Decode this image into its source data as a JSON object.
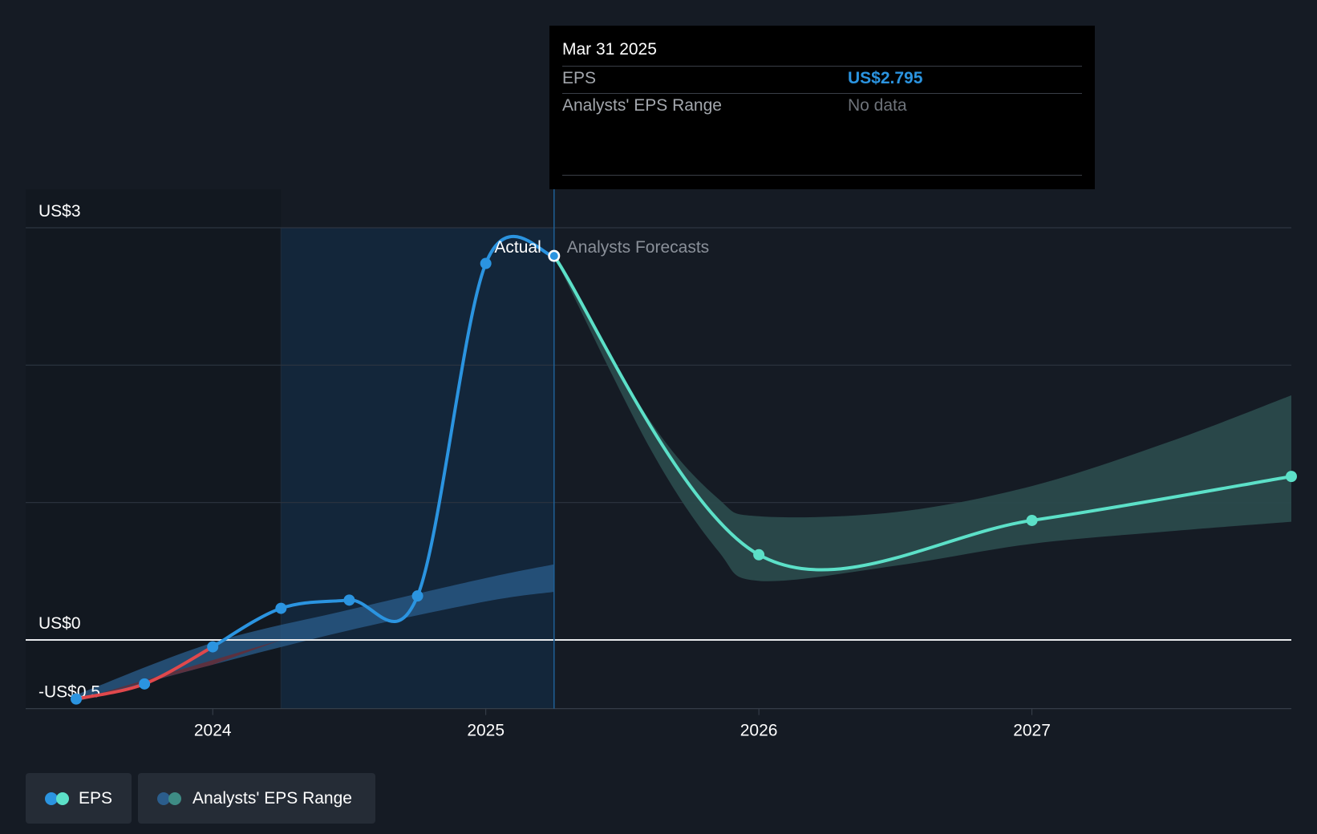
{
  "chart_data": {
    "type": "line",
    "x_unit": "year",
    "xlim": [
      2023.5,
      2027.95
    ],
    "ylim": [
      -0.5,
      3
    ],
    "y_ticks": [
      {
        "value": 3,
        "label": "US$3"
      },
      {
        "value": 0,
        "label": "US$0"
      },
      {
        "value": -0.5,
        "label": "-US$0.5"
      }
    ],
    "grid_values": [
      3,
      2,
      1,
      0,
      -0.5
    ],
    "x_ticks": [
      {
        "value": 2024,
        "label": "2024"
      },
      {
        "value": 2025,
        "label": "2025"
      },
      {
        "value": 2026,
        "label": "2026"
      },
      {
        "value": 2027,
        "label": "2027"
      }
    ],
    "past_region_start": 2024.25,
    "divider_x": 2025.25,
    "region_labels": {
      "actual": "Actual",
      "forecast": "Analysts Forecasts"
    },
    "series": [
      {
        "name": "EPS",
        "kind": "actual",
        "points": [
          {
            "x": 2023.5,
            "y": -0.43
          },
          {
            "x": 2023.75,
            "y": -0.32
          },
          {
            "x": 2024.0,
            "y": -0.05
          },
          {
            "x": 2024.25,
            "y": 0.23
          },
          {
            "x": 2024.5,
            "y": 0.29
          },
          {
            "x": 2024.75,
            "y": 0.32
          },
          {
            "x": 2025.0,
            "y": 2.74
          },
          {
            "x": 2025.25,
            "y": 2.795
          }
        ],
        "negative_color": "#e0484c",
        "positive_color": "#2b94e0"
      },
      {
        "name": "EPS",
        "kind": "forecast",
        "points": [
          {
            "x": 2025.25,
            "y": 2.795
          },
          {
            "x": 2026.0,
            "y": 0.62
          },
          {
            "x": 2027.0,
            "y": 0.87
          },
          {
            "x": 2027.95,
            "y": 1.19
          }
        ],
        "color": "#5ce0c8"
      }
    ],
    "past_band": {
      "x": [
        2023.5,
        2024.0,
        2024.5,
        2025.0,
        2025.25
      ],
      "low": [
        -0.45,
        -0.18,
        0.07,
        0.28,
        0.35
      ],
      "high": [
        -0.4,
        -0.02,
        0.22,
        0.45,
        0.55
      ]
    },
    "forecast_band": {
      "x": [
        2025.25,
        2025.6,
        2025.85,
        2026.0,
        2026.5,
        2027.0,
        2027.5,
        2027.95
      ],
      "low": [
        2.795,
        1.4,
        0.65,
        0.43,
        0.54,
        0.7,
        0.79,
        0.86
      ],
      "high": [
        2.795,
        1.6,
        1.03,
        0.9,
        0.93,
        1.12,
        1.44,
        1.78
      ]
    },
    "colors": {
      "past_band": "#2b5d8c",
      "past_band_neg": "#6a2a33",
      "forecast_band": "#2a4a4c",
      "highlight": "#13263a",
      "zero_line": "#e8eaed",
      "grid": "#2d3540"
    }
  },
  "tooltip": {
    "date": "Mar 31 2025",
    "rows": [
      {
        "label": "EPS",
        "value": "US$2.795",
        "color": "#2b94e0"
      },
      {
        "label": "Analysts' EPS Range",
        "value": "No data",
        "color": "#6e737a"
      }
    ]
  },
  "legend": [
    {
      "label": "EPS",
      "colors": [
        "#2b94e0",
        "#5ce0c8"
      ]
    },
    {
      "label": "Analysts' EPS Range",
      "colors": [
        "#2b5d8c",
        "#3e8c85"
      ]
    }
  ]
}
